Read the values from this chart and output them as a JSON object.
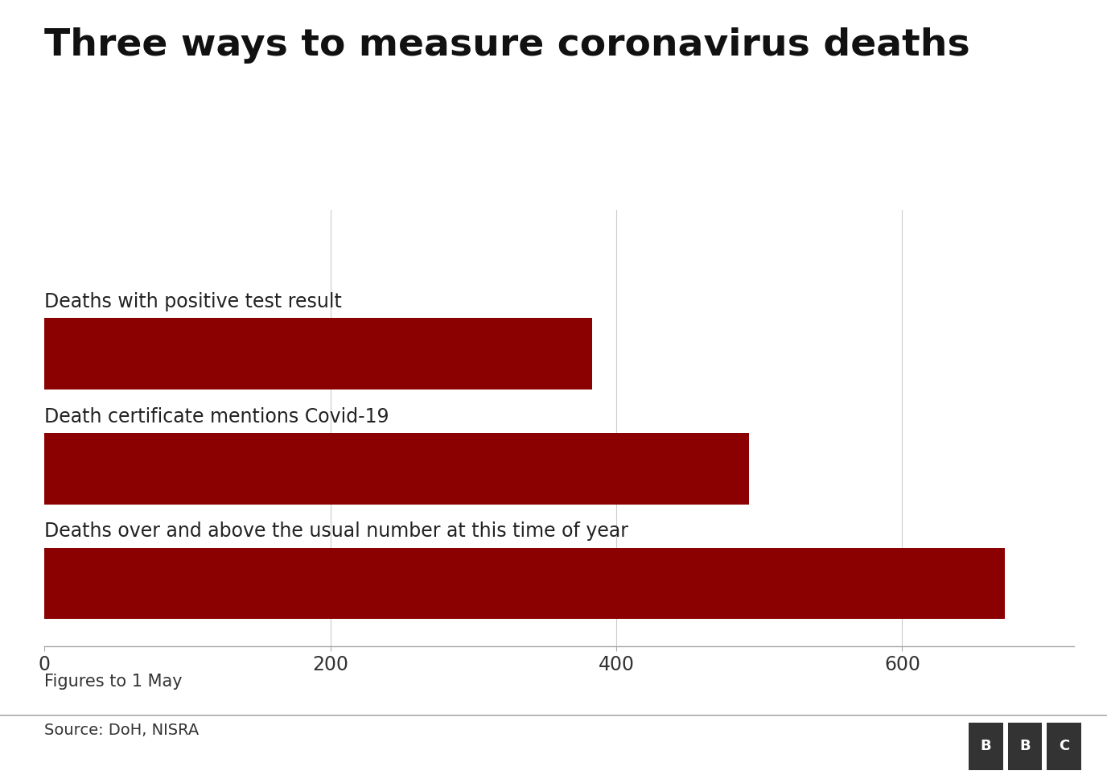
{
  "title": "Three ways to measure coronavirus deaths",
  "categories": [
    "Deaths with positive test result",
    "Death certificate mentions Covid-19",
    "Deaths over and above the usual number at this time of year"
  ],
  "values": [
    383,
    493,
    672
  ],
  "bar_color": "#8B0000",
  "xlim": [
    0,
    720
  ],
  "xticks": [
    0,
    200,
    400,
    600
  ],
  "footnote": "Figures to 1 May",
  "source": "Source: DoH, NISRA",
  "background_color": "#ffffff",
  "title_fontsize": 34,
  "label_fontsize": 17,
  "tick_fontsize": 17,
  "footnote_fontsize": 15,
  "source_fontsize": 14
}
